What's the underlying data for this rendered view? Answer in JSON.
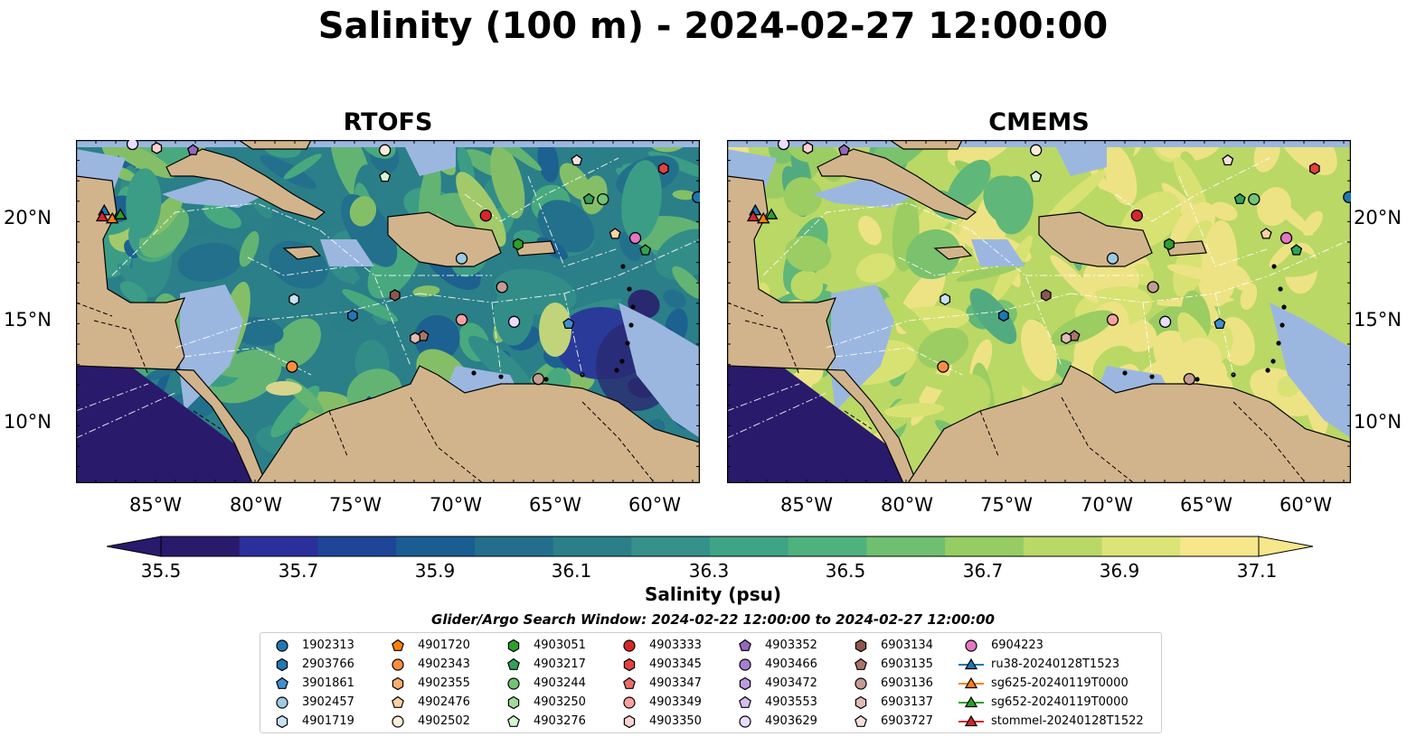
{
  "title": "Salinity (100 m) - 2024-02-27 12:00:00",
  "panels": [
    {
      "title": "RTOFS"
    },
    {
      "title": "CMEMS"
    }
  ],
  "longitude_labels": [
    "85°W",
    "80°W",
    "75°W",
    "70°W",
    "65°W",
    "60°W"
  ],
  "latitude_labels": [
    "20°N",
    "15°N",
    "10°N"
  ],
  "colorbar": {
    "label": "Salinity (psu)",
    "ticks": [
      "35.5",
      "35.7",
      "35.9",
      "36.1",
      "36.3",
      "36.5",
      "36.7",
      "36.9",
      "37.1"
    ],
    "range": [
      35.5,
      37.1
    ],
    "extend": "both",
    "colormap": [
      "#2a1a6b",
      "#2b2f9c",
      "#1e4596",
      "#1a5d92",
      "#226e8c",
      "#2b7f88",
      "#35918a",
      "#3fa386",
      "#4fb27e",
      "#6ebf70",
      "#95cc63",
      "#bad865",
      "#dde477",
      "#f6e68c"
    ]
  },
  "legend": {
    "header": "Glider/Argo Search Window: 2024-02-22 12:00:00 to 2024-02-27 12:00:00",
    "items": [
      {
        "label": "1902313",
        "marker": "circle",
        "color": "#1f77b4"
      },
      {
        "label": "2903766",
        "marker": "hexagon",
        "color": "#1f77b4"
      },
      {
        "label": "3901861",
        "marker": "pentagon",
        "color": "#3f8fd0"
      },
      {
        "label": "3902457",
        "marker": "circle",
        "color": "#9ecae1"
      },
      {
        "label": "4901719",
        "marker": "hexagon",
        "color": "#c6e2f5"
      },
      {
        "label": "4901720",
        "marker": "pentagon",
        "color": "#ff7f0e"
      },
      {
        "label": "4902343",
        "marker": "circle",
        "color": "#fd8d3c"
      },
      {
        "label": "4902355",
        "marker": "hexagon",
        "color": "#fdae6b"
      },
      {
        "label": "4902476",
        "marker": "pentagon",
        "color": "#fdd0a2"
      },
      {
        "label": "4902502",
        "marker": "circle",
        "color": "#feeddb"
      },
      {
        "label": "4903051",
        "marker": "hexagon",
        "color": "#2ca02c"
      },
      {
        "label": "4903217",
        "marker": "pentagon",
        "color": "#31a354"
      },
      {
        "label": "4903244",
        "marker": "circle",
        "color": "#74c476"
      },
      {
        "label": "4903250",
        "marker": "hexagon",
        "color": "#a1d99b"
      },
      {
        "label": "4903276",
        "marker": "pentagon",
        "color": "#d5f5d0"
      },
      {
        "label": "4903333",
        "marker": "circle",
        "color": "#d62728"
      },
      {
        "label": "4903345",
        "marker": "hexagon",
        "color": "#e3403f"
      },
      {
        "label": "4903347",
        "marker": "pentagon",
        "color": "#ef6b6b"
      },
      {
        "label": "4903349",
        "marker": "circle",
        "color": "#f7a1a1"
      },
      {
        "label": "4903350",
        "marker": "hexagon",
        "color": "#fbd1d1"
      },
      {
        "label": "4903352",
        "marker": "pentagon",
        "color": "#9467bd"
      },
      {
        "label": "4903466",
        "marker": "circle",
        "color": "#a87fd0"
      },
      {
        "label": "4903472",
        "marker": "hexagon",
        "color": "#bc9be0"
      },
      {
        "label": "4903553",
        "marker": "pentagon",
        "color": "#d4bdf0"
      },
      {
        "label": "4903629",
        "marker": "circle",
        "color": "#e9dcff"
      },
      {
        "label": "6903134",
        "marker": "hexagon",
        "color": "#8c564b"
      },
      {
        "label": "6903135",
        "marker": "pentagon",
        "color": "#a9746a"
      },
      {
        "label": "6903136",
        "marker": "circle",
        "color": "#c49c94"
      },
      {
        "label": "6903137",
        "marker": "hexagon",
        "color": "#e0bcb5"
      },
      {
        "label": "6903727",
        "marker": "pentagon",
        "color": "#f5e0dc"
      },
      {
        "label": "6904223",
        "marker": "circle",
        "color": "#e377c2"
      },
      {
        "label": "ru38-20240128T1523",
        "marker": "triangle-line",
        "color": "#1f77b4"
      },
      {
        "label": "sg625-20240119T0000",
        "marker": "triangle-line",
        "color": "#ff7f0e"
      },
      {
        "label": "sg652-20240119T0000",
        "marker": "triangle-line",
        "color": "#2ca02c"
      },
      {
        "label": "stommel-20240128T1522",
        "marker": "triangle-line",
        "color": "#d62728"
      }
    ]
  },
  "colors": {
    "land": "#d2b48c",
    "shallow_water": "#9bb7e0",
    "deep_pacific": "#2a1a6b",
    "coastline": "#000000"
  }
}
